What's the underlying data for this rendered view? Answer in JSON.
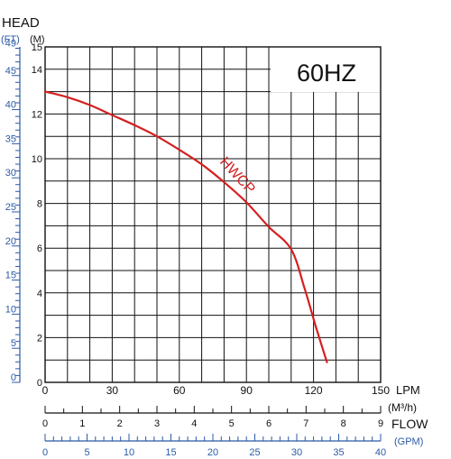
{
  "chart_data": {
    "type": "line",
    "panel_label": "60HZ",
    "left_header": "HEAD",
    "ft_unit": "(FT)",
    "m_unit": "(M)",
    "axis_label_lpm": "LPM",
    "axis_label_m3h": "(M³/h)",
    "axis_label_flow": "FLOW",
    "axis_label_gpm": "(GPM)",
    "series": [
      {
        "name": "HWCP",
        "color": "#d42020",
        "points": [
          [
            0,
            13.0
          ],
          [
            10,
            12.75
          ],
          [
            20,
            12.4
          ],
          [
            30,
            11.95
          ],
          [
            40,
            11.5
          ],
          [
            50,
            11.0
          ],
          [
            60,
            10.4
          ],
          [
            70,
            9.75
          ],
          [
            80,
            8.95
          ],
          [
            90,
            8.05
          ],
          [
            100,
            6.95
          ],
          [
            110,
            5.95
          ],
          [
            116,
            4.2
          ],
          [
            121,
            2.5
          ],
          [
            126,
            0.9
          ]
        ]
      }
    ],
    "x_lpm": {
      "min": 0,
      "max": 150,
      "ticks": [
        "0",
        "30",
        "60",
        "90",
        "120",
        "150"
      ]
    },
    "y_m": {
      "min": 0,
      "max": 15,
      "ticks": [
        "0",
        "2",
        "4",
        "6",
        "8",
        "10",
        "12",
        "14",
        "15"
      ]
    },
    "y_ft": {
      "min": 0,
      "max": 49.2,
      "ticks": [
        "0",
        "5",
        "10",
        "15",
        "20",
        "25",
        "30",
        "35",
        "40",
        "45",
        "49"
      ]
    },
    "x_m3h": {
      "min": 0,
      "max": 9,
      "ticks": [
        "0",
        "1",
        "2",
        "3",
        "4",
        "5",
        "6",
        "7",
        "8",
        "9"
      ]
    },
    "x_gpm": {
      "min": 0,
      "max": 40,
      "ticks": [
        "0",
        "5",
        "10",
        "15",
        "20",
        "25",
        "30",
        "35",
        "40"
      ]
    },
    "grid": true
  }
}
